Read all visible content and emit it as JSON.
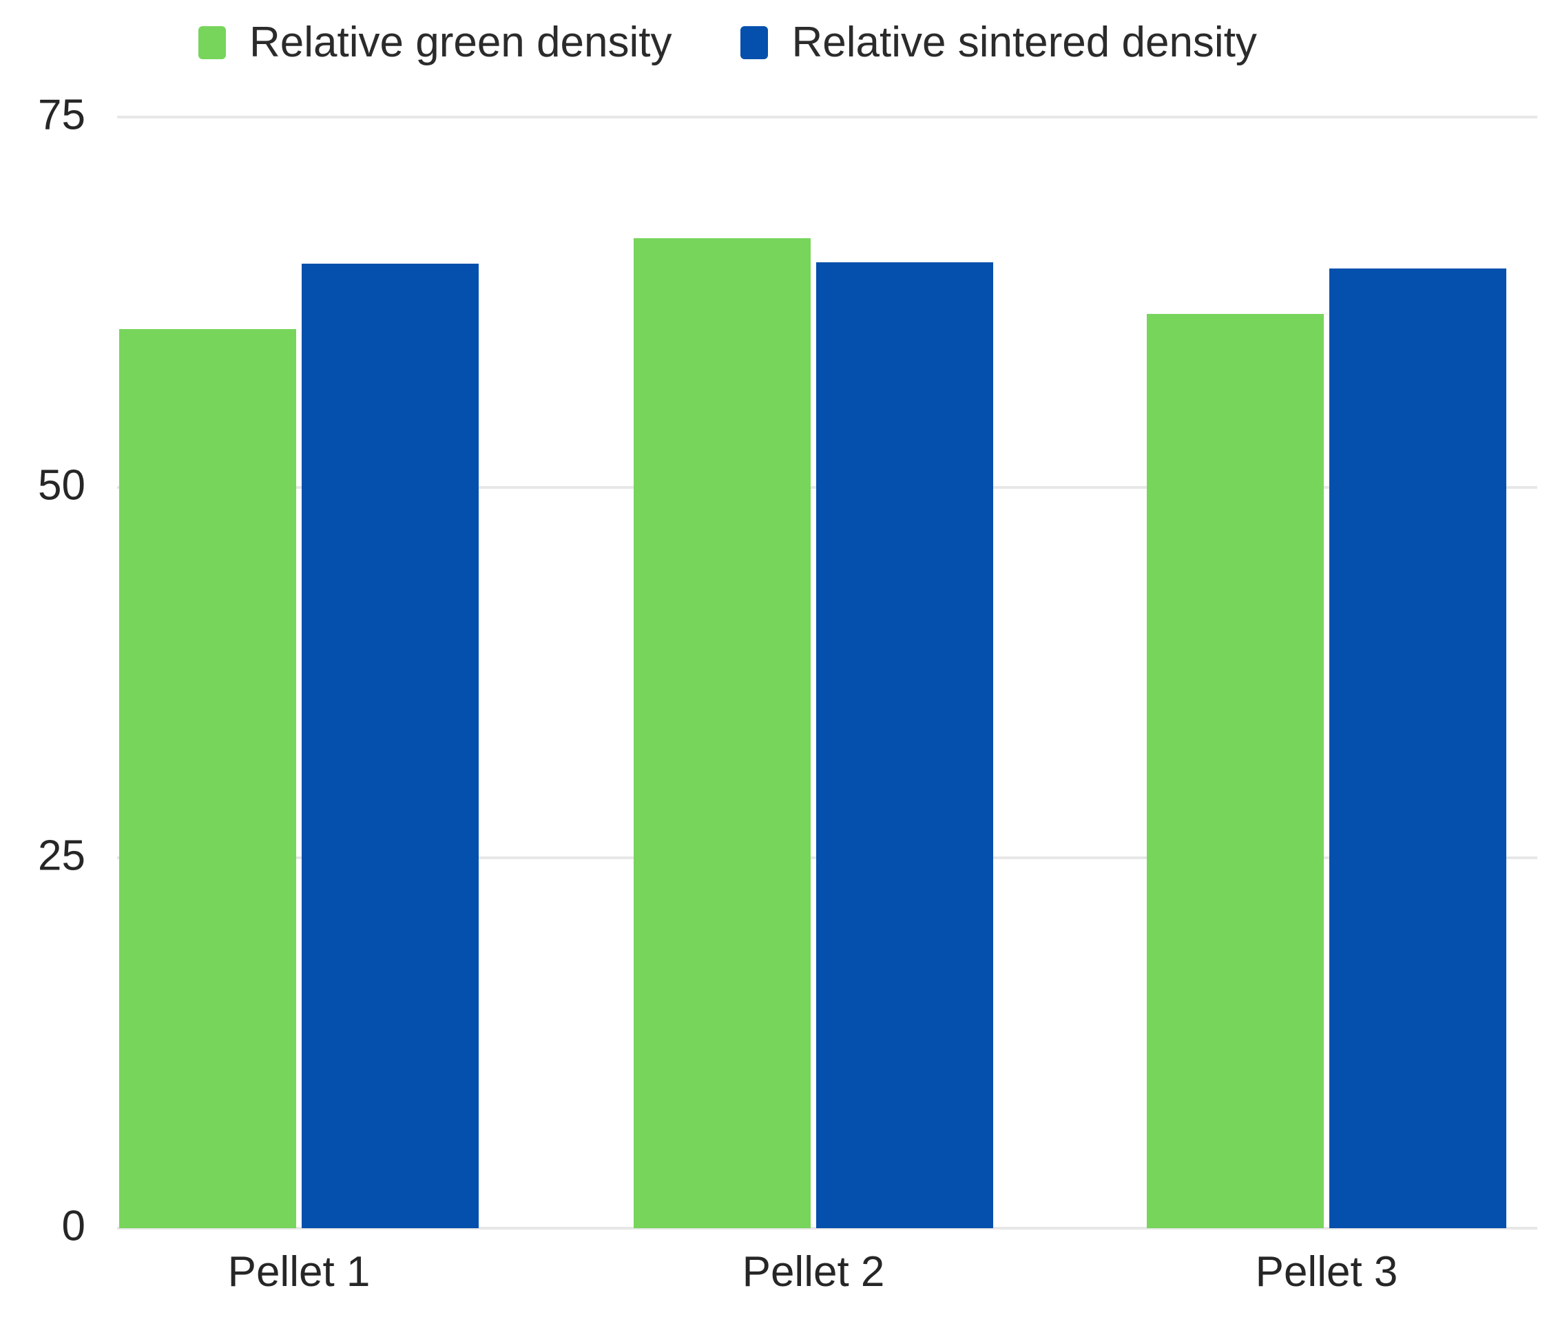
{
  "chart_data": {
    "type": "bar",
    "title": "",
    "xlabel": "",
    "ylabel": "",
    "categories": [
      "Pellet 1",
      "Pellet 2",
      "Pellet 3"
    ],
    "series": [
      {
        "name": "Relative green density",
        "color": "#77D55C",
        "values": [
          60.7,
          66.8,
          61.7
        ]
      },
      {
        "name": "Relative sintered density",
        "color": "#0450AC",
        "values": [
          65.1,
          65.2,
          64.8
        ]
      }
    ],
    "ylim": [
      0,
      75
    ],
    "yticks": [
      75,
      50,
      25,
      0
    ],
    "grid": true,
    "legend_position": "top",
    "colors": {
      "background": "#FFFFFF",
      "text": "#282828",
      "gridline": "#E7E7E7",
      "green_series": "#77D55C",
      "blue_series": "#0450AC"
    }
  }
}
